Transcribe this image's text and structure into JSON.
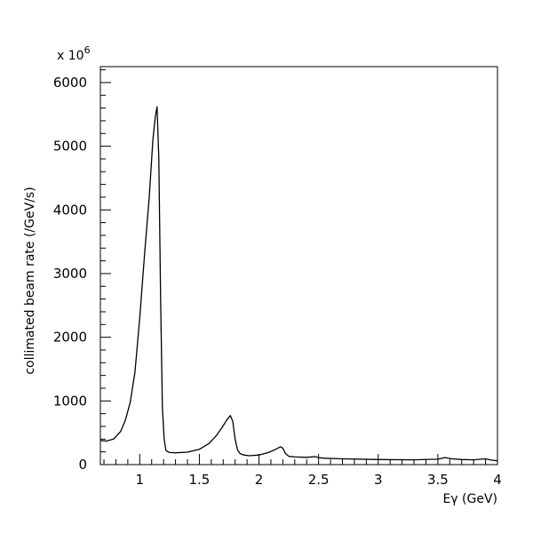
{
  "chart_data": {
    "type": "line",
    "title": "",
    "xlabel": "Eγ (GeV)",
    "ylabel": "collimated beam rate (/GeV/s)",
    "y_multiplier": "x 10",
    "y_multiplier_exp": "6",
    "xlim": [
      0.67,
      4.0
    ],
    "ylim": [
      0,
      6250
    ],
    "grid": false,
    "legend": "none",
    "x_ticks": [
      {
        "value": 1,
        "label": "1"
      },
      {
        "value": 1.5,
        "label": "1.5"
      },
      {
        "value": 2,
        "label": "2"
      },
      {
        "value": 2.5,
        "label": "2.5"
      },
      {
        "value": 3,
        "label": "3"
      },
      {
        "value": 3.5,
        "label": "3.5"
      },
      {
        "value": 4,
        "label": "4"
      }
    ],
    "y_ticks": [
      {
        "value": 0,
        "label": "0"
      },
      {
        "value": 1000,
        "label": "1000"
      },
      {
        "value": 2000,
        "label": "2000"
      },
      {
        "value": 3000,
        "label": "3000"
      },
      {
        "value": 4000,
        "label": "4000"
      },
      {
        "value": 5000,
        "label": "5000"
      },
      {
        "value": 6000,
        "label": "6000"
      }
    ],
    "series": [
      {
        "x": [
          0.67,
          0.72,
          0.78,
          0.84,
          0.88,
          0.92,
          0.96,
          1.0,
          1.04,
          1.08,
          1.11,
          1.13,
          1.145,
          1.16,
          1.175,
          1.19,
          1.205,
          1.22,
          1.25,
          1.3,
          1.4,
          1.5,
          1.58,
          1.64,
          1.69,
          1.73,
          1.76,
          1.78,
          1.8,
          1.82,
          1.84,
          1.87,
          1.92,
          2.0,
          2.08,
          2.14,
          2.18,
          2.2,
          2.22,
          2.25,
          2.3,
          2.4,
          2.47,
          2.5,
          2.55,
          2.7,
          3.0,
          3.3,
          3.5,
          3.56,
          3.62,
          3.7,
          3.8,
          3.9,
          3.95,
          4.0
        ],
        "y": [
          380,
          370,
          400,
          520,
          700,
          980,
          1450,
          2300,
          3300,
          4200,
          5100,
          5450,
          5620,
          4800,
          2600,
          900,
          400,
          220,
          190,
          185,
          195,
          240,
          330,
          450,
          580,
          700,
          770,
          680,
          400,
          230,
          175,
          150,
          140,
          150,
          190,
          240,
          280,
          260,
          180,
          130,
          120,
          115,
          125,
          110,
          100,
          90,
          80,
          75,
          85,
          110,
          90,
          80,
          75,
          90,
          70,
          60
        ]
      }
    ]
  }
}
